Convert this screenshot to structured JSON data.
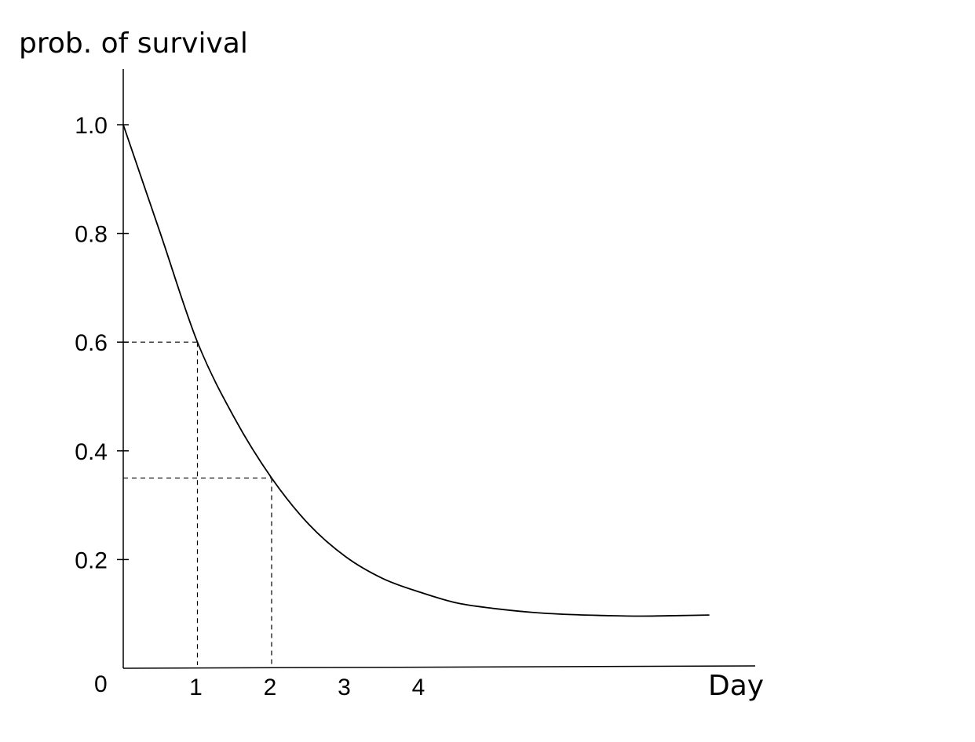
{
  "chart_data": {
    "type": "line",
    "title": "",
    "ylabel": "prob. of survival",
    "xlabel": "Day",
    "origin_label": "0",
    "xlim": [
      0,
      8.5
    ],
    "ylim": [
      0,
      1.1
    ],
    "grid": false,
    "x_ticks": [
      {
        "value": 1,
        "label": "1"
      },
      {
        "value": 2,
        "label": "2"
      },
      {
        "value": 3,
        "label": "3"
      },
      {
        "value": 4,
        "label": "4"
      }
    ],
    "y_ticks": [
      {
        "value": 0.2,
        "label": "0.2"
      },
      {
        "value": 0.4,
        "label": "0.4"
      },
      {
        "value": 0.6,
        "label": "0.6"
      },
      {
        "value": 0.8,
        "label": "0.8"
      },
      {
        "value": 1.0,
        "label": "1.0"
      }
    ],
    "series": [
      {
        "x": [
          0,
          0.5,
          1,
          1.5,
          2,
          2.5,
          3,
          3.5,
          4,
          4.5,
          5,
          5.5,
          6,
          6.5,
          7,
          7.5,
          7.9
        ],
        "y": [
          1.0,
          0.8,
          0.6,
          0.46,
          0.35,
          0.265,
          0.205,
          0.165,
          0.14,
          0.12,
          0.11,
          0.103,
          0.099,
          0.097,
          0.096,
          0.097,
          0.098
        ]
      }
    ],
    "reference_points": [
      {
        "x": 1,
        "y": 0.6
      },
      {
        "x": 2,
        "y": 0.35
      }
    ],
    "colors": {
      "line": "#000000",
      "axis": "#000000",
      "background": "#ffffff"
    }
  }
}
